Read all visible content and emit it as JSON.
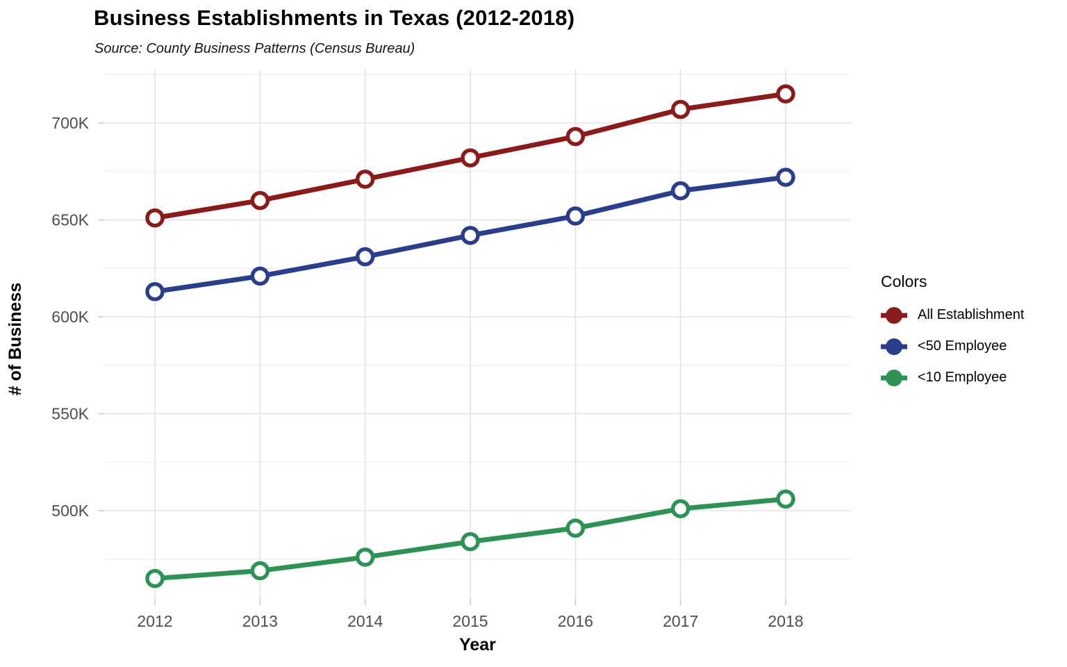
{
  "title": "Business Establishments in Texas (2012-2018)",
  "subtitle": "Source: County Business Patterns (Census Bureau)",
  "chart_data": {
    "type": "line",
    "x": [
      2012,
      2013,
      2014,
      2015,
      2016,
      2017,
      2018
    ],
    "x_tick_labels": [
      "2012",
      "2013",
      "2014",
      "2015",
      "2016",
      "2017",
      "2018"
    ],
    "series": [
      {
        "name": "All Establishment",
        "color": "#8B1A1A",
        "values": [
          651000,
          660000,
          671000,
          682000,
          693000,
          707000,
          715000
        ]
      },
      {
        "name": "<50 Employee",
        "color": "#2B3E8C",
        "values": [
          613000,
          621000,
          631000,
          642000,
          652000,
          665000,
          672000
        ]
      },
      {
        "name": "<10 Employee",
        "color": "#2E9155",
        "values": [
          465000,
          469000,
          476000,
          484000,
          491000,
          501000,
          506000
        ]
      }
    ],
    "xlabel": "Year",
    "ylabel": "# of Business",
    "y_ticks": [
      {
        "value": 500000,
        "label": "500K"
      },
      {
        "value": 550000,
        "label": "550K"
      },
      {
        "value": 600000,
        "label": "600K"
      },
      {
        "value": 650000,
        "label": "650K"
      },
      {
        "value": 700000,
        "label": "700K"
      }
    ],
    "y_minor_ticks": [
      475000,
      525000,
      575000,
      625000,
      675000,
      725000
    ],
    "ylim": [
      455000,
      727500
    ],
    "xlim": [
      2011.5,
      2018.6
    ],
    "grid": true,
    "legend_title": "Colors",
    "legend_position": "right",
    "marker": "open-circle"
  },
  "style_colors": {
    "grid_major": "#E3E3E3",
    "grid_minor": "#F1F1F1",
    "tick": "#C9C9C9",
    "axis_text": "#4D4D4D",
    "axis_title": "#000000",
    "marker_fill": "#FFFFFF"
  }
}
